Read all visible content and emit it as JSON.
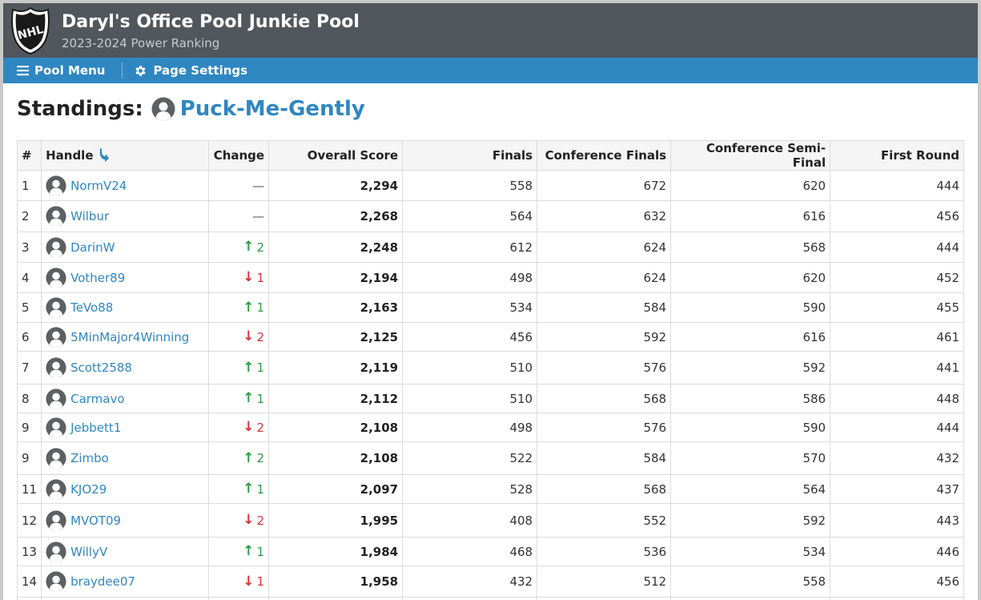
{
  "header": {
    "title": "Daryl's Office Pool Junkie Pool",
    "subtitle": "2023-2024 Power Ranking",
    "logo_text": "NHL"
  },
  "nav": {
    "menu_label": "Pool Menu",
    "settings_label": "Page Settings"
  },
  "standings": {
    "label": "Standings:",
    "team_name": "Puck-Me-Gently"
  },
  "table": {
    "headers": {
      "rank": "#",
      "handle": "Handle",
      "change": "Change",
      "overall": "Overall Score",
      "finals": "Finals",
      "conference_finals": "Conference Finals",
      "conference_semi_final": "Conference Semi-Final",
      "first_round": "First Round"
    },
    "rows": [
      {
        "rank": "1",
        "handle": "NormV24",
        "change_dir": "none",
        "change": "",
        "overall": "2,294",
        "finals": "558",
        "cf": "672",
        "csf": "620",
        "fr": "444"
      },
      {
        "rank": "2",
        "handle": "Wilbur",
        "change_dir": "none",
        "change": "",
        "overall": "2,268",
        "finals": "564",
        "cf": "632",
        "csf": "616",
        "fr": "456"
      },
      {
        "rank": "3",
        "handle": "DarinW",
        "change_dir": "up",
        "change": "2",
        "overall": "2,248",
        "finals": "612",
        "cf": "624",
        "csf": "568",
        "fr": "444"
      },
      {
        "rank": "4",
        "handle": "Vother89",
        "change_dir": "down",
        "change": "1",
        "overall": "2,194",
        "finals": "498",
        "cf": "624",
        "csf": "620",
        "fr": "452"
      },
      {
        "rank": "5",
        "handle": "TeVo88",
        "change_dir": "up",
        "change": "1",
        "overall": "2,163",
        "finals": "534",
        "cf": "584",
        "csf": "590",
        "fr": "455"
      },
      {
        "rank": "6",
        "handle": "5MinMajor4Winning",
        "change_dir": "down",
        "change": "2",
        "overall": "2,125",
        "finals": "456",
        "cf": "592",
        "csf": "616",
        "fr": "461"
      },
      {
        "rank": "7",
        "handle": "Scott2588",
        "change_dir": "up",
        "change": "1",
        "overall": "2,119",
        "finals": "510",
        "cf": "576",
        "csf": "592",
        "fr": "441"
      },
      {
        "rank": "8",
        "handle": "Carmavo",
        "change_dir": "up",
        "change": "1",
        "overall": "2,112",
        "finals": "510",
        "cf": "568",
        "csf": "586",
        "fr": "448"
      },
      {
        "rank": "9",
        "handle": "Jebbett1",
        "change_dir": "down",
        "change": "2",
        "overall": "2,108",
        "finals": "498",
        "cf": "576",
        "csf": "590",
        "fr": "444"
      },
      {
        "rank": "9",
        "handle": "Zimbo",
        "change_dir": "up",
        "change": "2",
        "overall": "2,108",
        "finals": "522",
        "cf": "584",
        "csf": "570",
        "fr": "432"
      },
      {
        "rank": "11",
        "handle": "KJO29",
        "change_dir": "up",
        "change": "1",
        "overall": "2,097",
        "finals": "528",
        "cf": "568",
        "csf": "564",
        "fr": "437"
      },
      {
        "rank": "12",
        "handle": "MVOT09",
        "change_dir": "down",
        "change": "2",
        "overall": "1,995",
        "finals": "408",
        "cf": "552",
        "csf": "592",
        "fr": "443"
      },
      {
        "rank": "13",
        "handle": "WillyV",
        "change_dir": "up",
        "change": "1",
        "overall": "1,984",
        "finals": "468",
        "cf": "536",
        "csf": "534",
        "fr": "446"
      },
      {
        "rank": "14",
        "handle": "braydee07",
        "change_dir": "down",
        "change": "1",
        "overall": "1,958",
        "finals": "432",
        "cf": "512",
        "csf": "558",
        "fr": "456"
      },
      {
        "rank": "",
        "handle": "",
        "change_dir": "none",
        "change": "",
        "overall": "",
        "finals": "",
        "cf": "",
        "csf": "",
        "fr": ""
      }
    ]
  },
  "icons": {
    "menu": "hamburger-icon",
    "settings": "gear-icon",
    "sort": "sort-arrow-icon",
    "avatar": "user-avatar-icon",
    "change_up": "arrow-up-icon",
    "change_down": "arrow-down-icon",
    "change_none": "dash-icon"
  },
  "colors": {
    "header_bg": "#51575c",
    "nav_bg": "#2f87c2",
    "link": "#2f87c2",
    "up": "#2e9a48",
    "down": "#d6323c"
  }
}
